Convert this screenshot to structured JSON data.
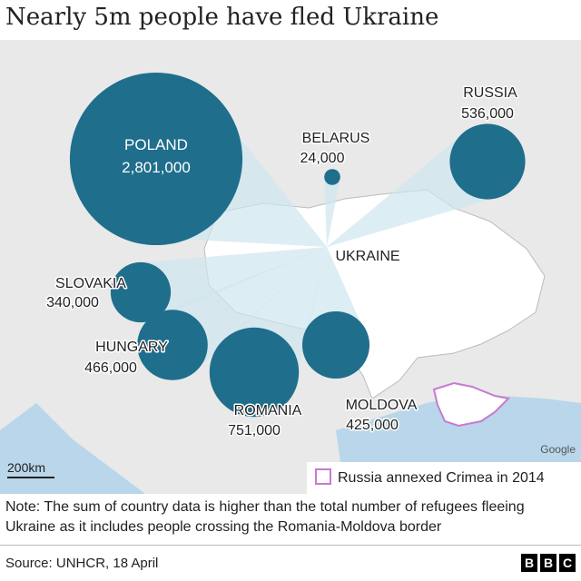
{
  "title": "Nearly 5m people have fled Ukraine",
  "center_label": "UKRAINE",
  "countries": [
    {
      "name": "POLAND",
      "value": 2801000,
      "value_label": "2,801,000"
    },
    {
      "name": "BELARUS",
      "value": 24000,
      "value_label": "24,000"
    },
    {
      "name": "RUSSIA",
      "value": 536000,
      "value_label": "536,000"
    },
    {
      "name": "SLOVAKIA",
      "value": 340000,
      "value_label": "340,000"
    },
    {
      "name": "HUNGARY",
      "value": 466000,
      "value_label": "466,000"
    },
    {
      "name": "ROMANIA",
      "value": 751000,
      "value_label": "751,000"
    },
    {
      "name": "MOLDOVA",
      "value": 425000,
      "value_label": "425,000"
    }
  ],
  "scale_label": "200km",
  "attribution": "Google",
  "legend": "Russia annexed Crimea in 2014",
  "note": "Note: The sum of country data is higher than the total number of refugees fleeing Ukraine as it includes people crossing the Romania-Moldova border",
  "source": "Source: UNHCR, 18 April",
  "logo": [
    "B",
    "B",
    "C"
  ]
}
